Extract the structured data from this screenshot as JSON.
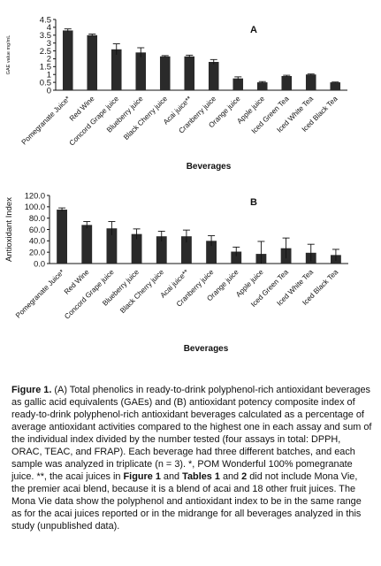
{
  "chart_data": [
    {
      "type": "bar",
      "panel_letter": "A",
      "ylabel": "GAE value mg/mL",
      "xlabel": "Beverages",
      "ylim": [
        0,
        4.5
      ],
      "yticks": [
        0,
        0.5,
        1,
        1.5,
        2,
        2.5,
        3,
        3.5,
        4,
        4.5
      ],
      "ytick_labels": [
        "0",
        "0.5",
        "1",
        "1.5",
        "2",
        "2.5",
        "3",
        "3.5",
        "4",
        "4.5"
      ],
      "grid": false,
      "categories": [
        "Pomegranate Juice*",
        "Red Wine",
        "Concord Grape juice",
        "Blueberry juice",
        "Black Cherry juice",
        "Acai juice**",
        "Cranberry juice",
        "Orange juice",
        "Apple juice",
        "Iced Green Tea",
        "Iced White Tea",
        "Iced Black Tea"
      ],
      "values": [
        3.8,
        3.5,
        2.6,
        2.4,
        2.15,
        2.15,
        1.8,
        0.75,
        0.5,
        0.9,
        1.0,
        0.5
      ],
      "errors": [
        0.1,
        0.07,
        0.35,
        0.3,
        0.05,
        0.08,
        0.15,
        0.1,
        0.05,
        0.05,
        0.03,
        0.02
      ]
    },
    {
      "type": "bar",
      "panel_letter": "B",
      "ylabel": "Antioxidant Index",
      "xlabel": "Beverages",
      "ylim": [
        0,
        120
      ],
      "yticks": [
        0,
        20,
        40,
        60,
        80,
        100,
        120
      ],
      "ytick_labels": [
        "0.0",
        "20.0",
        "40.0",
        "60.0",
        "80.0",
        "100.0",
        "120.0"
      ],
      "grid": false,
      "categories": [
        "Pomegranate Juice*",
        "Red Wine",
        "Concord Grape juice",
        "Blueberry juice",
        "Black Cherry juice",
        "Acai juice**",
        "Cranberry juice",
        "Orange juice",
        "Apple juice",
        "Iced Green Tea",
        "Iced White Tea",
        "Iced Black Tea"
      ],
      "values": [
        95,
        68,
        62,
        52,
        48,
        48,
        40,
        21,
        17,
        27,
        19,
        15
      ],
      "errors": [
        3,
        6,
        12,
        9,
        9,
        11,
        9,
        8,
        22,
        18,
        15,
        10
      ]
    }
  ],
  "caption": {
    "figure_label": "Figure 1.",
    "text_1": "(A) Total phenolics in ready-to-drink polyphenol-rich antioxidant beverages as gallic acid equivalents (GAEs) and (B) antioxidant potency composite index of ready-to-drink polyphenol-rich antioxidant beverages calculated as a percentage of average antioxidant activities compared to the highest one in each assay and sum of the individual index divided by the number tested (four assays in total: DPPH, ORAC, TEAC, and FRAP). Each beverage had three different batches, and each sample was analyzed in triplicate (n = 3). *, POM Wonderful 100% pomegranate juice. **, the acai juices in ",
    "ref_1": "Figure 1",
    "text_2": " and ",
    "ref_2": "Tables 1",
    "text_3": " and ",
    "ref_3": "2",
    "text_4": " did not include Mona Vie, the premier acai blend, because it is a blend of acai and 18 other fruit juices. The Mona Vie data show the polyphenol and antioxidant index to be in the same range as for the acai juices reported or in the midrange for all beverages analyzed in this study (unpublished data)."
  }
}
